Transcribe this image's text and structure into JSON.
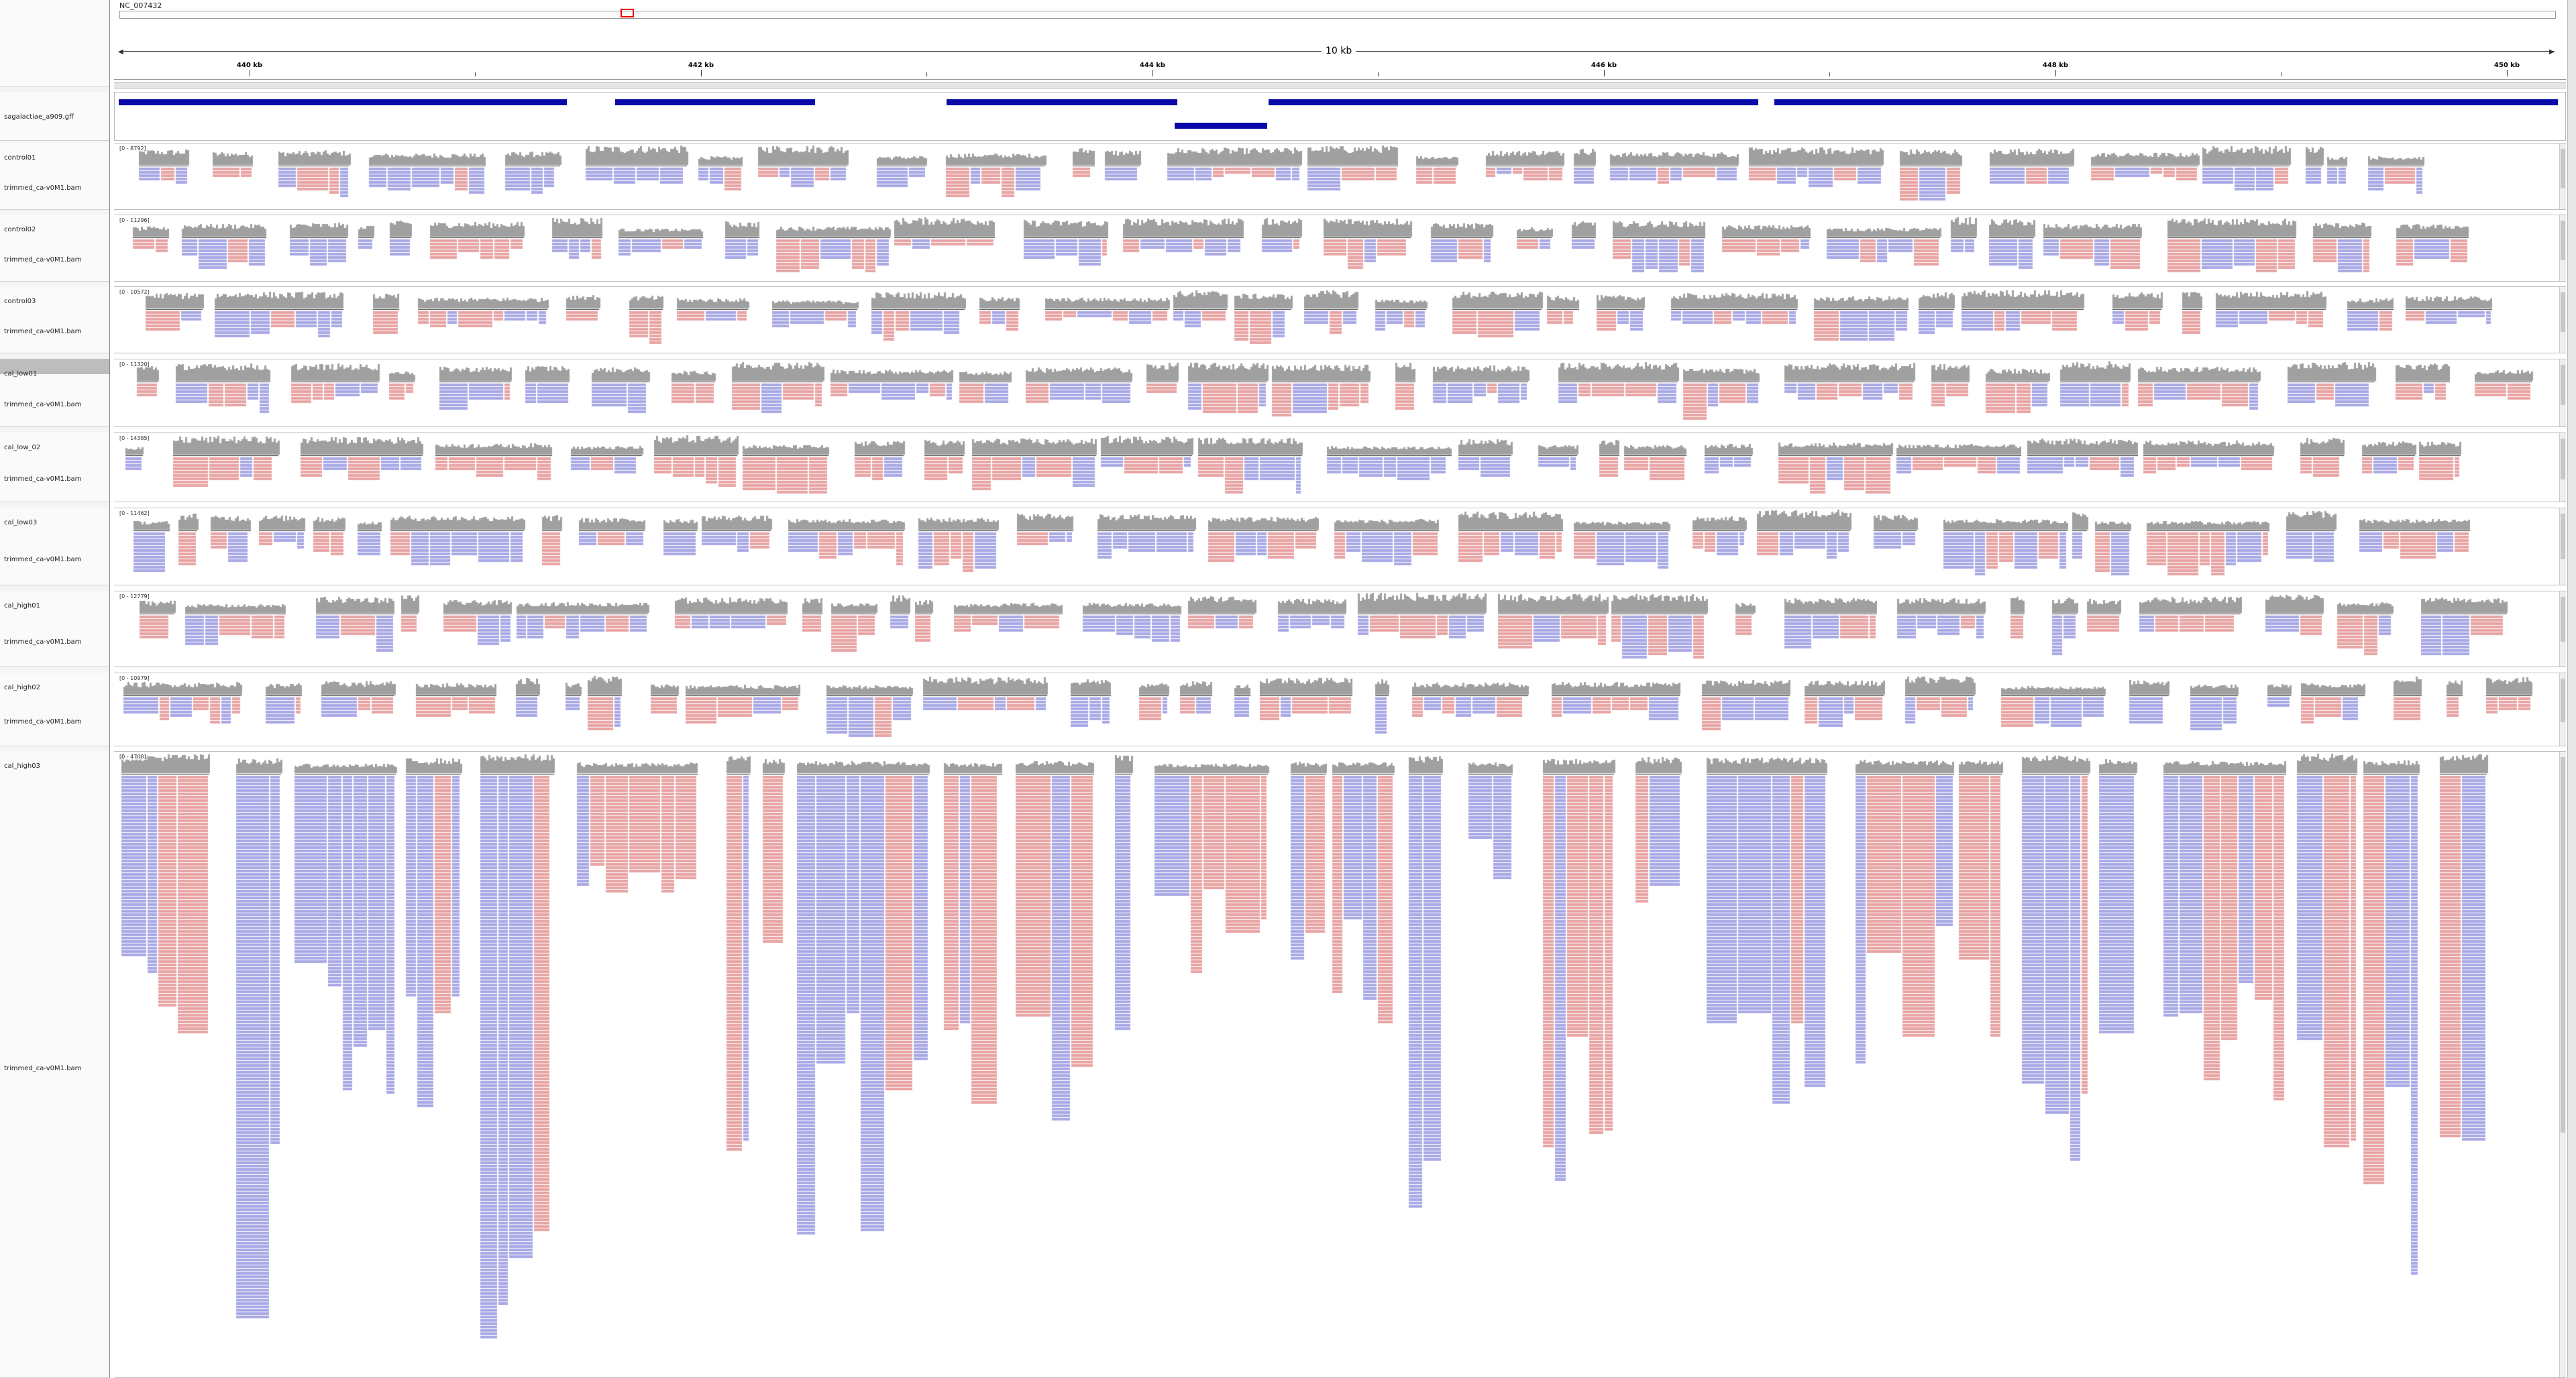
{
  "ruler": {
    "chromosome": "NC_007432",
    "span_label": "10 kb",
    "ticks": [
      "440 kb",
      "442 kb",
      "444 kb",
      "446 kb",
      "448 kb",
      "450 kb"
    ]
  },
  "gff_track": {
    "label": "sagalactiae_a909.gff"
  },
  "colors": {
    "coverage": "#a0a0a0",
    "forward_read": "#e8a3a3",
    "reverse_read": "#a8a8e6",
    "gene": "#0a0aa8",
    "locator": "#e00000"
  },
  "tracks": [
    {
      "sample": "control01",
      "bam_label": "trimmed_ca-v0M1.bam",
      "range": "[0 - 8792]",
      "selected": false
    },
    {
      "sample": "control02",
      "bam_label": "trimmed_ca-v0M1.bam",
      "range": "[0 - 11296]",
      "selected": false
    },
    {
      "sample": "control03",
      "bam_label": "trimmed_ca-v0M1.bam",
      "range": "[0 - 10572]",
      "selected": false
    },
    {
      "sample": "cal_low01",
      "bam_label": "trimmed_ca-v0M1.bam",
      "range": "[0 - 11320]",
      "selected": true
    },
    {
      "sample": "cal_low_02",
      "bam_label": "trimmed_ca-v0M1.bam",
      "range": "[0 - 14385]",
      "selected": false
    },
    {
      "sample": "cal_low03",
      "bam_label": "trimmed_ca-v0M1.bam",
      "range": "[0 - 11462]",
      "selected": false
    },
    {
      "sample": "cal_high01",
      "bam_label": "trimmed_ca-v0M1.bam",
      "range": "[0 - 12779]",
      "selected": false
    },
    {
      "sample": "cal_high02",
      "bam_label": "trimmed_ca-v0M1.bam",
      "range": "[0 - 10979]",
      "selected": false
    },
    {
      "sample": "cal_high03",
      "bam_label": "trimmed_ca-v0M1.bam",
      "range": "[0 - 4708]",
      "selected": false
    }
  ]
}
